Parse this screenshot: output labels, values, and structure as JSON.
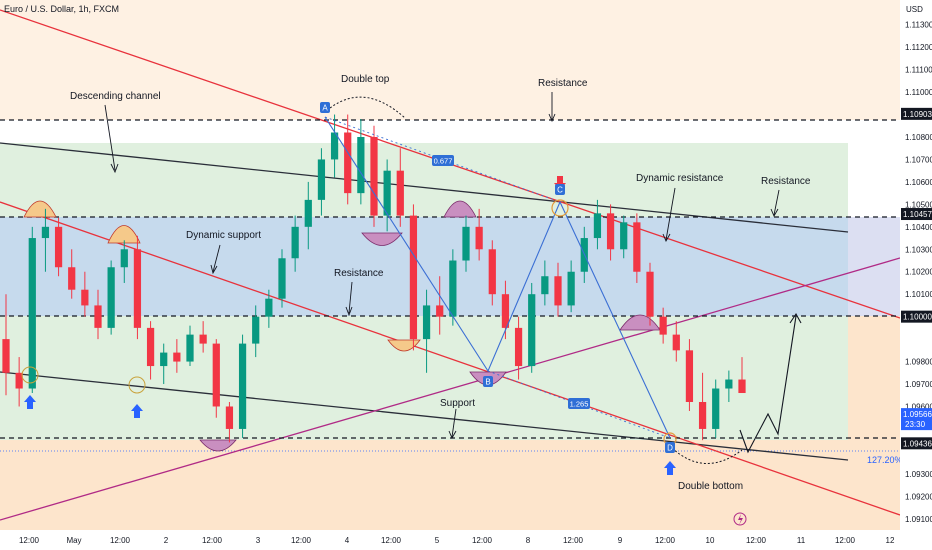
{
  "header": {
    "symbol_title": "Euro / U.S. Dollar, 1h, FXCM"
  },
  "colors": {
    "background": "#ffffff",
    "candle_up": "#089981",
    "candle_down": "#f23645",
    "trendline_red": "#e8323c",
    "channel_black": "#2a2e39",
    "magenta_line": "#b02a86",
    "abcd_blue": "#3b6fd4",
    "label_blue": "#2f6fd6",
    "arrow_blue": "#2962ff",
    "zone_blue": "#bcd3ea",
    "zone_green": "#d8ecd7",
    "zone_orange": "#fde5cc"
  },
  "chart_data": {
    "type": "candlestick",
    "currency_label": "USD",
    "ylim": [
      1.0905,
      1.1141
    ],
    "y_ticks": [
      "1.11300",
      "1.11200",
      "1.11100",
      "1.11000",
      "1.10800",
      "1.10700",
      "1.10600",
      "1.10500",
      "1.10400",
      "1.10300",
      "1.10200",
      "1.10100",
      "1.09800",
      "1.09700",
      "1.09600",
      "1.09300",
      "1.09200",
      "1.09100"
    ],
    "x_ticks": [
      "12:00",
      "May",
      "12:00",
      "2",
      "12:00",
      "3",
      "12:00",
      "4",
      "12:00",
      "5",
      "12:00",
      "8",
      "12:00",
      "9",
      "12:00",
      "10",
      "12:00",
      "11",
      "12:00",
      "12"
    ],
    "price_labels": [
      {
        "text": "1.10903",
        "value": 1.10903
      },
      {
        "text": "1.10457",
        "value": 1.10457
      },
      {
        "text": "1.10000",
        "value": 1.1
      },
      {
        "text": "1.09436",
        "value": 1.09436
      }
    ],
    "current_price": {
      "value": "1.09566",
      "countdown": "23:30",
      "level": 1.09566
    },
    "fib_label": "127.20%",
    "abcd_points": [
      {
        "label": "A",
        "value": 1.10903
      },
      {
        "label": "B",
        "value": 1.0975
      },
      {
        "label": "C",
        "value": 1.1052
      },
      {
        "label": "D",
        "value": 1.09436
      }
    ],
    "ratio_labels": [
      "0.677",
      "1.265"
    ],
    "annotations": [
      "Descending channel",
      "Double top",
      "Resistance",
      "Dynamic resistance",
      "Resistance",
      "Dynamic support",
      "Resistance",
      "Support",
      "Double bottom"
    ],
    "ohlc": [
      [
        1.099,
        1.101,
        1.0965,
        1.0975
      ],
      [
        1.0975,
        1.0982,
        1.096,
        1.0968
      ],
      [
        1.0968,
        1.104,
        1.0966,
        1.1035
      ],
      [
        1.1035,
        1.1048,
        1.102,
        1.104
      ],
      [
        1.104,
        1.1044,
        1.1018,
        1.1022
      ],
      [
        1.1022,
        1.103,
        1.1008,
        1.1012
      ],
      [
        1.1012,
        1.102,
        1.1,
        1.1005
      ],
      [
        1.1005,
        1.1012,
        1.099,
        1.0995
      ],
      [
        1.0995,
        1.1025,
        1.0992,
        1.1022
      ],
      [
        1.1022,
        1.1034,
        1.1015,
        1.103
      ],
      [
        1.103,
        1.1036,
        1.099,
        1.0995
      ],
      [
        1.0995,
        1.0998,
        1.0972,
        1.0978
      ],
      [
        1.0978,
        1.0988,
        1.097,
        1.0984
      ],
      [
        1.0984,
        1.099,
        1.0975,
        1.098
      ],
      [
        1.098,
        1.0996,
        1.0978,
        1.0992
      ],
      [
        1.0992,
        1.0998,
        1.0984,
        1.0988
      ],
      [
        1.0988,
        1.099,
        1.0955,
        1.096
      ],
      [
        1.096,
        1.0962,
        1.0944,
        1.095
      ],
      [
        1.095,
        1.0992,
        1.0946,
        1.0988
      ],
      [
        1.0988,
        1.1005,
        1.0982,
        1.1
      ],
      [
        1.1,
        1.1012,
        1.0995,
        1.1008
      ],
      [
        1.1008,
        1.103,
        1.1004,
        1.1026
      ],
      [
        1.1026,
        1.1045,
        1.102,
        1.104
      ],
      [
        1.104,
        1.106,
        1.103,
        1.1052
      ],
      [
        1.1052,
        1.1075,
        1.1045,
        1.107
      ],
      [
        1.107,
        1.109,
        1.1062,
        1.1082
      ],
      [
        1.1082,
        1.109,
        1.105,
        1.1055
      ],
      [
        1.1055,
        1.1088,
        1.105,
        1.108
      ],
      [
        1.108,
        1.1085,
        1.104,
        1.1045
      ],
      [
        1.1045,
        1.107,
        1.1038,
        1.1065
      ],
      [
        1.1065,
        1.1075,
        1.104,
        1.1045
      ],
      [
        1.1045,
        1.105,
        1.0985,
        1.099
      ],
      [
        1.099,
        1.1012,
        1.0975,
        1.1005
      ],
      [
        1.1005,
        1.1018,
        1.0992,
        1.1
      ],
      [
        1.1,
        1.103,
        1.0996,
        1.1025
      ],
      [
        1.1025,
        1.1045,
        1.102,
        1.104
      ],
      [
        1.104,
        1.1048,
        1.1025,
        1.103
      ],
      [
        1.103,
        1.1034,
        1.1005,
        1.101
      ],
      [
        1.101,
        1.1016,
        1.099,
        1.0995
      ],
      [
        1.0995,
        1.1,
        1.0972,
        1.0978
      ],
      [
        1.0978,
        1.1015,
        1.0975,
        1.101
      ],
      [
        1.101,
        1.1025,
        1.1005,
        1.1018
      ],
      [
        1.1018,
        1.1024,
        1.1,
        1.1005
      ],
      [
        1.1005,
        1.1025,
        1.1002,
        1.102
      ],
      [
        1.102,
        1.104,
        1.1015,
        1.1035
      ],
      [
        1.1035,
        1.1052,
        1.103,
        1.1046
      ],
      [
        1.1046,
        1.105,
        1.1025,
        1.103
      ],
      [
        1.103,
        1.1045,
        1.1026,
        1.1042
      ],
      [
        1.1042,
        1.1046,
        1.1015,
        1.102
      ],
      [
        1.102,
        1.1024,
        1.0996,
        1.1
      ],
      [
        1.1,
        1.1004,
        1.0988,
        1.0992
      ],
      [
        1.0992,
        1.0998,
        1.098,
        1.0985
      ],
      [
        1.0985,
        1.099,
        1.0958,
        1.0962
      ],
      [
        1.0962,
        1.0975,
        1.0945,
        1.095
      ],
      [
        1.095,
        1.0972,
        1.0946,
        1.0968
      ],
      [
        1.0968,
        1.0976,
        1.0962,
        1.0972
      ],
      [
        1.0972,
        1.0982,
        1.0968,
        1.0966
      ]
    ]
  }
}
